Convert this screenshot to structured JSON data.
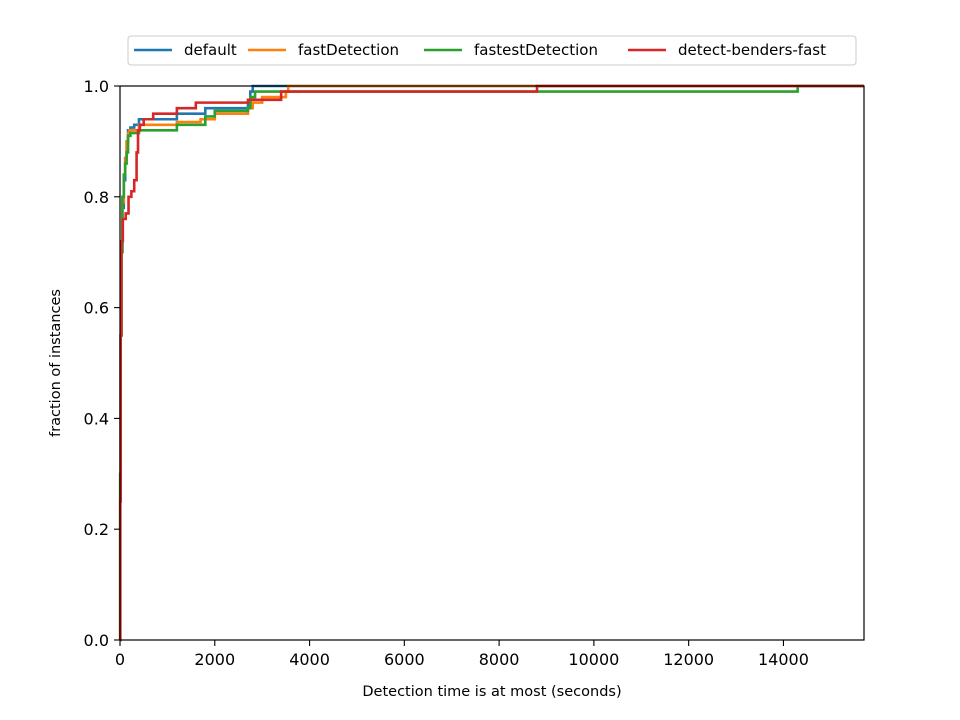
{
  "chart_data": {
    "type": "line",
    "step": true,
    "xlabel": "Detection time is at most (seconds)",
    "ylabel": "fraction of instances",
    "xlim": [
      0,
      15700
    ],
    "ylim": [
      0,
      1
    ],
    "xticks": [
      0,
      2000,
      4000,
      6000,
      8000,
      10000,
      12000,
      14000
    ],
    "yticks": [
      0.0,
      0.2,
      0.4,
      0.6,
      0.8,
      1.0
    ],
    "xtick_labels": [
      "0",
      "2000",
      "4000",
      "6000",
      "8000",
      "10000",
      "12000",
      "14000"
    ],
    "ytick_labels": [
      "0.0",
      "0.2",
      "0.4",
      "0.6",
      "0.8",
      "1.0"
    ],
    "grid": false,
    "legend_position": "top-center",
    "series": [
      {
        "name": "default",
        "color": "#1f77b4",
        "points": [
          [
            0,
            0.0
          ],
          [
            5,
            0.3
          ],
          [
            15,
            0.55
          ],
          [
            30,
            0.7
          ],
          [
            50,
            0.78
          ],
          [
            80,
            0.83
          ],
          [
            110,
            0.87
          ],
          [
            140,
            0.9
          ],
          [
            170,
            0.92
          ],
          [
            220,
            0.925
          ],
          [
            300,
            0.93
          ],
          [
            400,
            0.94
          ],
          [
            1200,
            0.95
          ],
          [
            1800,
            0.96
          ],
          [
            2000,
            0.96
          ],
          [
            2700,
            0.97
          ],
          [
            2750,
            0.99
          ],
          [
            2800,
            1.0
          ],
          [
            15700,
            1.0
          ]
        ]
      },
      {
        "name": "fastDetection",
        "color": "#ff7f0e",
        "points": [
          [
            0,
            0.0
          ],
          [
            5,
            0.3
          ],
          [
            15,
            0.55
          ],
          [
            30,
            0.7
          ],
          [
            50,
            0.79
          ],
          [
            80,
            0.84
          ],
          [
            110,
            0.87
          ],
          [
            140,
            0.9
          ],
          [
            170,
            0.915
          ],
          [
            200,
            0.92
          ],
          [
            400,
            0.93
          ],
          [
            1200,
            0.935
          ],
          [
            1700,
            0.94
          ],
          [
            2000,
            0.95
          ],
          [
            2700,
            0.96
          ],
          [
            2800,
            0.97
          ],
          [
            3000,
            0.98
          ],
          [
            3500,
            0.99
          ],
          [
            3550,
            1.0
          ],
          [
            15700,
            1.0
          ]
        ]
      },
      {
        "name": "fastestDetection",
        "color": "#2ca02c",
        "points": [
          [
            0,
            0.0
          ],
          [
            5,
            0.3
          ],
          [
            15,
            0.55
          ],
          [
            30,
            0.7
          ],
          [
            50,
            0.8
          ],
          [
            80,
            0.84
          ],
          [
            110,
            0.86
          ],
          [
            140,
            0.88
          ],
          [
            170,
            0.91
          ],
          [
            220,
            0.915
          ],
          [
            400,
            0.92
          ],
          [
            1200,
            0.93
          ],
          [
            1800,
            0.945
          ],
          [
            2000,
            0.955
          ],
          [
            2700,
            0.96
          ],
          [
            2750,
            0.98
          ],
          [
            2850,
            0.99
          ],
          [
            14300,
            1.0
          ],
          [
            15700,
            1.0
          ]
        ]
      },
      {
        "name": "detect-benders-fast",
        "color": "#d62728",
        "points": [
          [
            0,
            0.0
          ],
          [
            5,
            0.25
          ],
          [
            15,
            0.55
          ],
          [
            30,
            0.72
          ],
          [
            60,
            0.76
          ],
          [
            120,
            0.77
          ],
          [
            180,
            0.8
          ],
          [
            240,
            0.81
          ],
          [
            300,
            0.83
          ],
          [
            350,
            0.88
          ],
          [
            380,
            0.92
          ],
          [
            420,
            0.93
          ],
          [
            500,
            0.94
          ],
          [
            700,
            0.95
          ],
          [
            1200,
            0.96
          ],
          [
            1600,
            0.97
          ],
          [
            2700,
            0.975
          ],
          [
            3400,
            0.99
          ],
          [
            8800,
            1.0
          ],
          [
            15700,
            1.0
          ]
        ]
      }
    ]
  }
}
